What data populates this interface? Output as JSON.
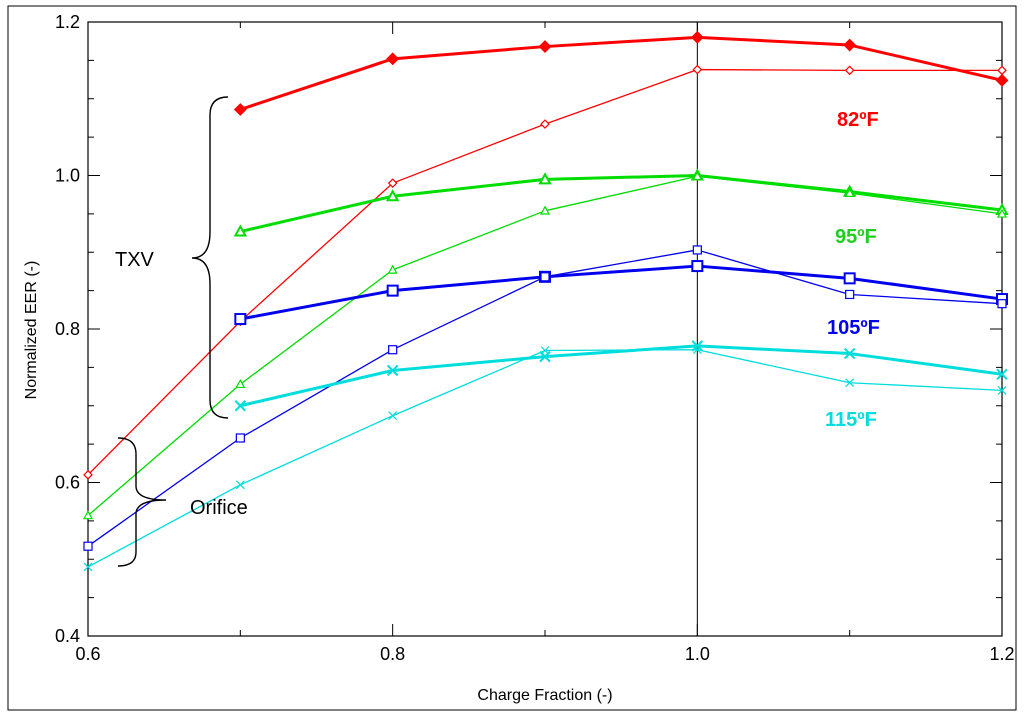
{
  "chart_data": {
    "type": "line",
    "title": "",
    "xlabel": "Charge Fraction (-)",
    "ylabel": "Normalized EER (-)",
    "xlim": [
      0.6,
      1.2
    ],
    "ylim": [
      0.4,
      1.2
    ],
    "x_ticks": [
      "0.6",
      "0.8",
      "1.0",
      "1.2"
    ],
    "y_ticks": [
      "0.4",
      "0.6",
      "0.8",
      "1.0",
      "1.2"
    ],
    "grid": false,
    "reference_line_x": 1.0,
    "series": [
      {
        "group": "TXV",
        "temp": "82°F",
        "color": "#ff0000",
        "marker": "diamond",
        "x": [
          0.7,
          0.8,
          0.9,
          1.0,
          1.1,
          1.2
        ],
        "y": [
          1.086,
          1.152,
          1.168,
          1.18,
          1.17,
          1.124
        ]
      },
      {
        "group": "Orifice",
        "temp": "82°F",
        "color": "#ff0000",
        "marker": "diamond",
        "x": [
          0.6,
          0.7,
          0.8,
          0.9,
          1.0,
          1.1,
          1.2
        ],
        "y": [
          0.61,
          0.81,
          0.99,
          1.067,
          1.138,
          1.137,
          1.137
        ]
      },
      {
        "group": "TXV",
        "temp": "95°F",
        "color": "#00dd00",
        "marker": "triangle",
        "x": [
          0.7,
          0.8,
          0.9,
          1.0,
          1.1,
          1.2
        ],
        "y": [
          0.927,
          0.973,
          0.995,
          1.0,
          0.979,
          0.955
        ]
      },
      {
        "group": "Orifice",
        "temp": "95°F",
        "color": "#00dd00",
        "marker": "triangle",
        "x": [
          0.6,
          0.7,
          0.8,
          0.9,
          1.0,
          1.1,
          1.2
        ],
        "y": [
          0.557,
          0.728,
          0.877,
          0.954,
          0.999,
          0.977,
          0.95
        ]
      },
      {
        "group": "TXV",
        "temp": "105°F",
        "color": "#0000ee",
        "marker": "square",
        "x": [
          0.7,
          0.8,
          0.9,
          1.0,
          1.1,
          1.2
        ],
        "y": [
          0.813,
          0.85,
          0.868,
          0.882,
          0.866,
          0.839
        ]
      },
      {
        "group": "Orifice",
        "temp": "105°F",
        "color": "#0000ee",
        "marker": "square",
        "x": [
          0.6,
          0.7,
          0.8,
          0.9,
          1.0,
          1.1,
          1.2
        ],
        "y": [
          0.517,
          0.658,
          0.773,
          0.868,
          0.903,
          0.845,
          0.833
        ]
      },
      {
        "group": "TXV",
        "temp": "115°F",
        "color": "#00dddd",
        "marker": "x",
        "x": [
          0.7,
          0.8,
          0.9,
          1.0,
          1.1,
          1.2
        ],
        "y": [
          0.7,
          0.746,
          0.764,
          0.778,
          0.768,
          0.741
        ]
      },
      {
        "group": "Orifice",
        "temp": "115°F",
        "color": "#00dddd",
        "marker": "x",
        "x": [
          0.6,
          0.7,
          0.8,
          0.9,
          1.0,
          1.1,
          1.2
        ],
        "y": [
          0.49,
          0.597,
          0.687,
          0.772,
          0.773,
          0.73,
          0.72
        ]
      }
    ],
    "series_labels": [
      {
        "text": "82ºF",
        "color": "#ff0000"
      },
      {
        "text": "95ºF",
        "color": "#22cc22"
      },
      {
        "text": "105ºF",
        "color": "#0000ee"
      },
      {
        "text": "115ºF",
        "color": "#00dddd"
      }
    ],
    "annotations": [
      {
        "text": "TXV"
      },
      {
        "text": "Orifice"
      }
    ]
  }
}
